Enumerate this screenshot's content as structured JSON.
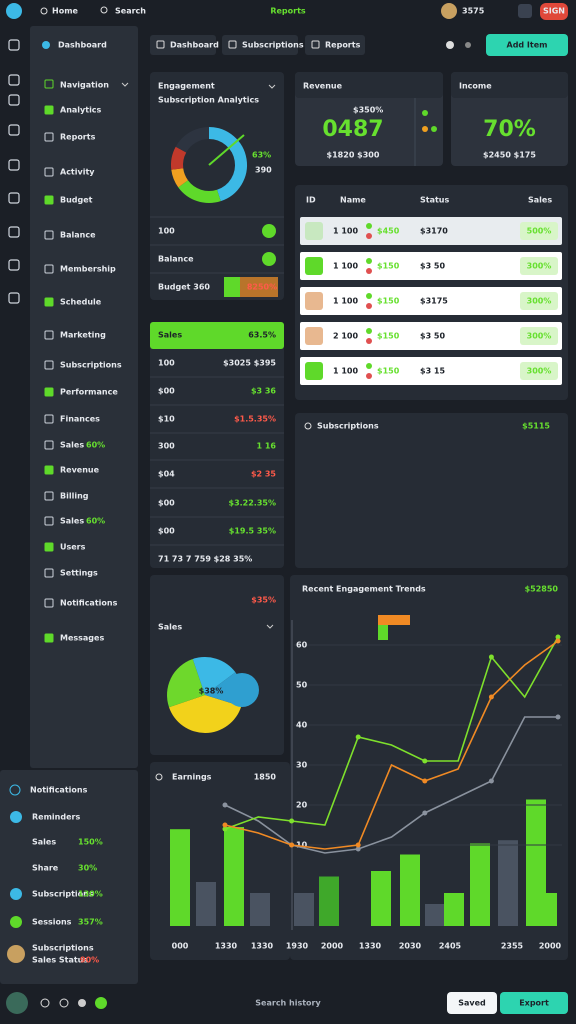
{
  "topbar": {
    "home": "Home",
    "search": "Search",
    "title": "Reports",
    "count": "3575",
    "button": "SIGN"
  },
  "sidebar": {
    "title": "Dashboard",
    "section": "Navigation",
    "items": [
      {
        "label": "Analytics"
      },
      {
        "label": "Reports"
      },
      {
        "label": "Activity"
      },
      {
        "label": "Budget"
      },
      {
        "label": "Balance"
      },
      {
        "label": "Membership"
      },
      {
        "label": "Schedule"
      },
      {
        "label": "Marketing"
      },
      {
        "label": "Subscriptions"
      },
      {
        "label": "Performance"
      },
      {
        "label": "Finances"
      },
      {
        "label": "Sales",
        "badge": "60%"
      },
      {
        "label": "Revenue"
      },
      {
        "label": "Billing"
      },
      {
        "label": "Sales",
        "badge": "60%"
      },
      {
        "label": "Users"
      },
      {
        "label": "Settings"
      },
      {
        "label": "Notifications"
      },
      {
        "label": "Messages"
      }
    ]
  },
  "notifications": {
    "title": "Notifications",
    "items": [
      {
        "label": "Reminders"
      },
      {
        "label": "Sales",
        "badge": "150%"
      },
      {
        "label": "Share",
        "badge": "30%"
      },
      {
        "label": "Subscriptions",
        "badge": "130%"
      },
      {
        "label": "Sessions",
        "badge": "357%"
      },
      {
        "label": "Subscriptions",
        "badge": "",
        "sub": "Sales Status",
        "subbadge": "90%"
      }
    ]
  },
  "toolbar": {
    "tabs": [
      "Dashboard",
      "Subscriptions",
      "Reports"
    ],
    "button": "Add Item"
  },
  "engagement": {
    "title": "Engagement",
    "subtitle": "Subscription Analytics",
    "legend_value": "63%",
    "legend_count": "390",
    "donut": {
      "values": [
        45,
        20,
        8,
        10,
        17
      ],
      "colors": [
        "#3cb9e6",
        "#5fd92a",
        "#f0a020",
        "#c0392b",
        "#2d3440"
      ]
    },
    "rows": [
      "100",
      "Balance",
      "Budget 360"
    ],
    "row_badge": "8250%"
  },
  "sales_list": {
    "title": "Sales",
    "value": "63.5%",
    "rows": [
      [
        "100",
        "$3025 $395"
      ],
      [
        "$00",
        "$3 36"
      ],
      [
        "$10",
        "$1.5.35%"
      ],
      [
        "300",
        "1 16"
      ],
      [
        "$04",
        "$2 35"
      ],
      [
        "$00",
        "$3.22.35%"
      ],
      [
        "$00",
        "$19.5 35%"
      ]
    ],
    "footer": "71 73 7 759 $28 35%"
  },
  "stats": [
    {
      "title": "Revenue",
      "small": "$350%",
      "value": "0487",
      "foot": "$1820 $300"
    },
    {
      "title": "Income",
      "small": "",
      "value": "70%",
      "foot": "$2450 $175"
    }
  ],
  "table": {
    "headers": [
      "ID",
      "Name",
      "Status",
      "Sales"
    ],
    "rows": [
      [
        "1 100",
        "$450",
        "$3170",
        "500%"
      ],
      [
        "1 100",
        "$150",
        "$3 50",
        "300%"
      ],
      [
        "1 100",
        "$150",
        "$3175",
        "300%"
      ],
      [
        "2 100",
        "$150",
        "$3 50",
        "300%"
      ],
      [
        "1 100",
        "$150",
        "$3 15",
        "300%"
      ]
    ]
  },
  "subs_card": {
    "title": "Subscriptions",
    "value": "$5115"
  },
  "pie_card": {
    "badge": "$35%",
    "title": "Sales",
    "label": "$38%",
    "pie": {
      "values": [
        40,
        25,
        20,
        15
      ],
      "colors": [
        "#f2d21b",
        "#6ed82c",
        "#3cb9e6",
        "#2f9fd0"
      ]
    }
  },
  "earnings": {
    "title": "Earnings",
    "value": "1850",
    "bars": {
      "values": [
        88,
        40,
        90,
        30,
        30,
        45,
        50,
        65,
        20,
        30,
        75,
        78,
        115,
        30
      ],
      "colors": [
        "#5fd92a",
        "#4a5361",
        "#5fd92a",
        "#4a5361",
        "#4a5361",
        "#3fa82a",
        "#5fd92a",
        "#5fd92a",
        "#4a5361",
        "#5fd92a",
        "#5fd92a",
        "#4a5361",
        "#5fd92a",
        "#5fd92a"
      ],
      "ylim": [
        0,
        120
      ]
    },
    "xlabels": [
      "000",
      "1330",
      "1330",
      "1930",
      "2000",
      "1330",
      "2030",
      "2405",
      "2355",
      "2000"
    ]
  },
  "trend": {
    "title": "Recent Engagement Trends",
    "value": "$52850",
    "ylim": [
      0,
      70
    ],
    "yticks": [
      10,
      20,
      30,
      40,
      50,
      60
    ],
    "series": [
      {
        "color": "#8a929e",
        "values": [
          20,
          16,
          10,
          8,
          9,
          12,
          18,
          22,
          26,
          42,
          42
        ]
      },
      {
        "color": "#7ee02c",
        "values": [
          14,
          17,
          16,
          15,
          37,
          35,
          31,
          31,
          57,
          47,
          62
        ]
      },
      {
        "color": "#f08a24",
        "values": [
          15,
          13,
          10,
          9,
          10,
          30,
          26,
          29,
          47,
          55,
          61
        ]
      }
    ]
  },
  "bottombar": {
    "center": "Search history",
    "button": "Export",
    "small": "Saved"
  }
}
